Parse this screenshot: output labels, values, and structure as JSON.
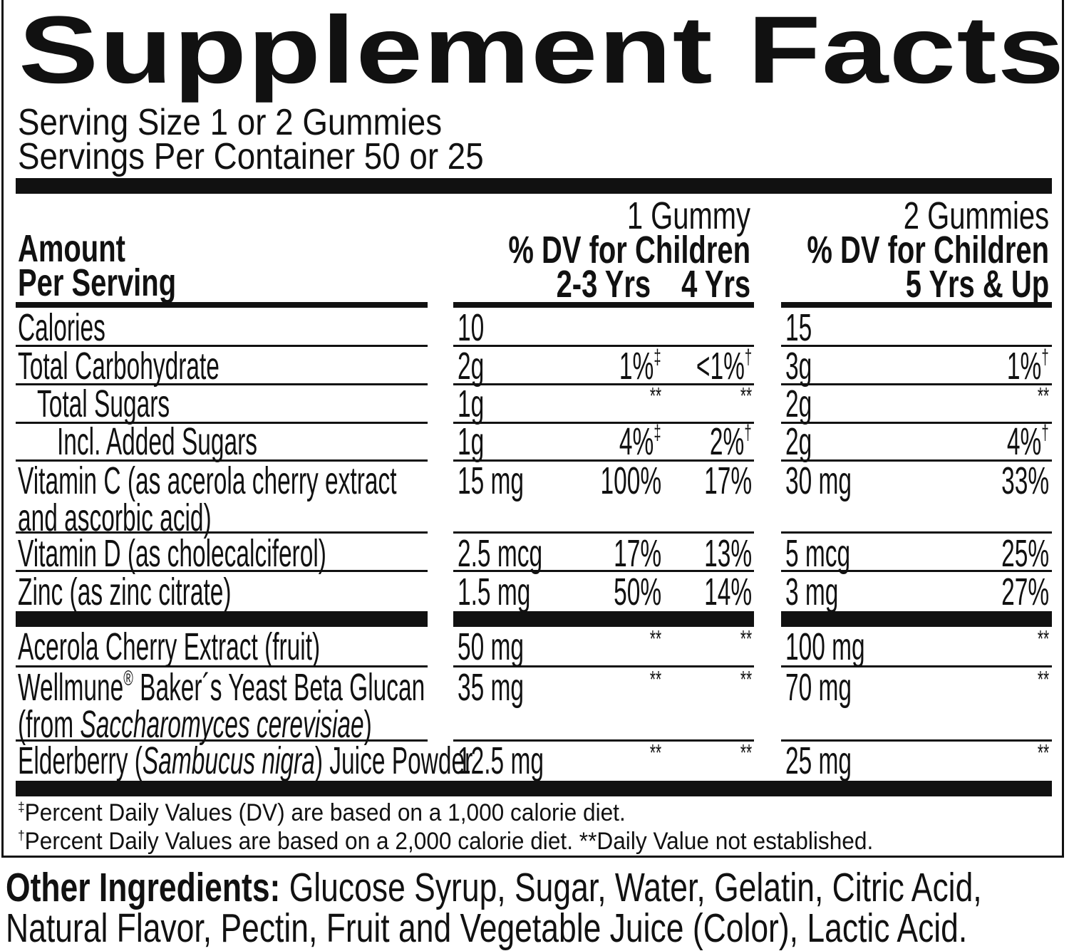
{
  "title": "Supplement Facts",
  "serving": {
    "size": "Serving Size 1 or 2 Gummies",
    "per_container": "Servings Per Container 50 or 25"
  },
  "header": {
    "amount_line1": "Amount",
    "amount_line2": "Per Serving",
    "col1_title": "1 Gummy",
    "col1_subtitle": "% DV for Children",
    "col1_age_a": "2-3 Yrs",
    "col1_age_b": "4 Yrs",
    "col2_title": "2 Gummies",
    "col2_subtitle": "% DV for Children",
    "col2_age": "5 Yrs & Up"
  },
  "rows": [
    {
      "name_lines": [
        [
          {
            "t": "Calories"
          }
        ]
      ],
      "indent": 0,
      "amount_1": "10",
      "dv_2_3": "",
      "dv_2_3_mark": "",
      "dv_4": "",
      "dv_4_mark": "",
      "amount_2": "15",
      "dv_5up": "",
      "dv_5up_mark": ""
    },
    {
      "name_lines": [
        [
          {
            "t": "Total Carbohydrate"
          }
        ]
      ],
      "indent": 0,
      "amount_1": "2g",
      "dv_2_3": "1%",
      "dv_2_3_mark": "‡",
      "dv_4": "<1%",
      "dv_4_mark": "†",
      "amount_2": "3g",
      "dv_5up": "1%",
      "dv_5up_mark": "†"
    },
    {
      "name_lines": [
        [
          {
            "t": "Total Sugars"
          }
        ]
      ],
      "indent": 1,
      "amount_1": "1g",
      "dv_2_3": "**",
      "dv_2_3_mark": "",
      "dv_4": "**",
      "dv_4_mark": "",
      "amount_2": "2g",
      "dv_5up": "**",
      "dv_5up_mark": ""
    },
    {
      "name_lines": [
        [
          {
            "t": "Incl. Added Sugars"
          }
        ]
      ],
      "indent": 2,
      "amount_1": "1g",
      "dv_2_3": "4%",
      "dv_2_3_mark": "‡",
      "dv_4": "2%",
      "dv_4_mark": "†",
      "amount_2": "2g",
      "dv_5up": "4%",
      "dv_5up_mark": "†"
    },
    {
      "name_lines": [
        [
          {
            "t": "Vitamin C (as acerola cherry extract"
          }
        ],
        [
          {
            "t": "and ascorbic acid)"
          }
        ]
      ],
      "indent": 0,
      "amount_1": "15 mg",
      "dv_2_3": "100%",
      "dv_2_3_mark": "",
      "dv_4": "17%",
      "dv_4_mark": "",
      "amount_2": "30 mg",
      "dv_5up": "33%",
      "dv_5up_mark": ""
    },
    {
      "name_lines": [
        [
          {
            "t": "Vitamin D (as cholecalciferol)"
          }
        ]
      ],
      "indent": 0,
      "amount_1": "2.5 mcg",
      "dv_2_3": "17%",
      "dv_2_3_mark": "",
      "dv_4": "13%",
      "dv_4_mark": "",
      "amount_2": "5 mcg",
      "dv_5up": "25%",
      "dv_5up_mark": ""
    },
    {
      "name_lines": [
        [
          {
            "t": "Zinc (as zinc citrate)"
          }
        ]
      ],
      "indent": 0,
      "amount_1": "1.5 mg",
      "dv_2_3": "50%",
      "dv_2_3_mark": "",
      "dv_4": "14%",
      "dv_4_mark": "",
      "amount_2": "3 mg",
      "dv_5up": "27%",
      "dv_5up_mark": ""
    },
    {
      "name_lines": [
        [
          {
            "t": "Acerola Cherry Extract (fruit)"
          }
        ]
      ],
      "indent": 0,
      "amount_1": "50 mg",
      "dv_2_3": "**",
      "dv_2_3_mark": "",
      "dv_4": "**",
      "dv_4_mark": "",
      "amount_2": "100 mg",
      "dv_5up": "**",
      "dv_5up_mark": ""
    },
    {
      "name_lines": [
        [
          {
            "t": "Wellmune"
          },
          {
            "t": "®",
            "s": "sup"
          },
          {
            "t": " Baker´s Yeast Beta Glucan"
          }
        ],
        [
          {
            "t": "(from "
          },
          {
            "t": "Saccharomyces cerevisiae",
            "s": "italic"
          },
          {
            "t": ")"
          }
        ]
      ],
      "indent": 0,
      "amount_1": "35 mg",
      "dv_2_3": "**",
      "dv_2_3_mark": "",
      "dv_4": "**",
      "dv_4_mark": "",
      "amount_2": "70 mg",
      "dv_5up": "**",
      "dv_5up_mark": ""
    },
    {
      "name_lines": [
        [
          {
            "t": "Elderberry ("
          },
          {
            "t": "Sambucus nigra",
            "s": "italic"
          },
          {
            "t": ") Juice Powder"
          }
        ]
      ],
      "indent": 0,
      "amount_1": "12.5 mg",
      "dv_2_3": "**",
      "dv_2_3_mark": "",
      "dv_4": "**",
      "dv_4_mark": "",
      "amount_2": "25 mg",
      "dv_5up": "**",
      "dv_5up_mark": ""
    }
  ],
  "footnotes": [
    {
      "mark": "‡",
      "text": "Percent Daily Values (DV) are based on a 1,000 calorie diet."
    },
    {
      "mark": "†",
      "text": "Percent Daily Values are based on a 2,000 calorie diet. **Daily Value not established."
    }
  ],
  "other_ingredients": {
    "label": "Other Ingredients:",
    "line1": " Glucose Syrup, Sugar, Water, Gelatin, Citric Acid,",
    "line2": "Natural Flavor, Pectin, Fruit and Vegetable Juice (Color), Lactic Acid."
  }
}
